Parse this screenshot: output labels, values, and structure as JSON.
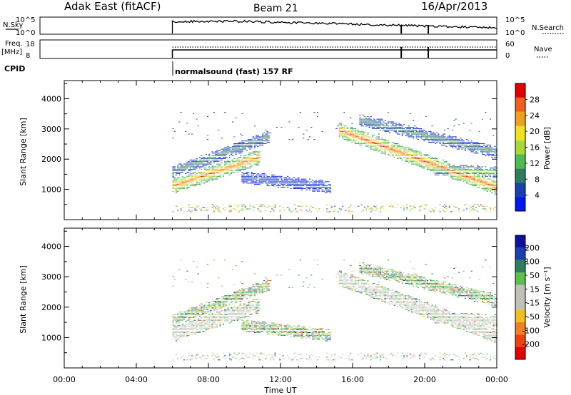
{
  "header": {
    "station": "Adak East (fitACF)",
    "beam": "Beam 21",
    "date": "16/Apr/2013"
  },
  "strips": {
    "nsky_label": "N.Sky",
    "nsky_ticks": [
      "10^5",
      "10^0"
    ],
    "nsearch_label": "N.Search",
    "nsearch_ticks": [
      "10^5",
      "10^0"
    ],
    "freq_label": "Freq.",
    "freq_unit": "[MHz]",
    "freq_ticks": [
      "18",
      "8"
    ],
    "nave_label": "Nave",
    "nave_ticks": [
      "60",
      "0"
    ],
    "cpid_label": "CPID",
    "cpid_text": "normalsound (fast) 157 RF"
  },
  "colors": {
    "power": [
      "#0018f0",
      "#1a3fb0",
      "#2e7d5b",
      "#4dbb4d",
      "#a8d83a",
      "#f0e020",
      "#f0a020",
      "#f06020",
      "#e00000"
    ],
    "velocity": [
      "#e00000",
      "#f04010",
      "#f08020",
      "#f0c020",
      "#c0c0b8",
      "#c0c0b8",
      "#5cc04a",
      "#2e7d5b",
      "#1a3fb0",
      "#1010a0"
    ],
    "gray": "#c8c8c0"
  },
  "chart_data": [
    {
      "type": "heatmap",
      "name": "power",
      "xlabel": "Time UT",
      "ylabel": "Slant Range [km]",
      "x_ticks": [
        "00:00",
        "04:00",
        "08:00",
        "12:00",
        "16:00",
        "20:00",
        "00:00"
      ],
      "y_ticks": [
        "1000",
        "2000",
        "3000",
        "4000"
      ],
      "xlim_hours": [
        0,
        24
      ],
      "ylim_km": [
        0,
        4600
      ],
      "colorbar_label": "Power [dB]",
      "colorbar_ticks": [
        "4",
        "8",
        "12",
        "16",
        "20",
        "24",
        "28"
      ],
      "colorbar_range": [
        0,
        32
      ],
      "echo_bands": [
        {
          "start_hour": 6.0,
          "end_hour": 10.8,
          "start_km": 1100,
          "end_km": 2050,
          "peak_db": 28
        },
        {
          "start_hour": 6.0,
          "end_hour": 11.4,
          "start_km": 1550,
          "end_km": 2750,
          "peak_db": 10
        },
        {
          "start_hour": 9.8,
          "end_hour": 14.8,
          "start_km": 1400,
          "end_km": 1050,
          "peak_db": 6
        },
        {
          "start_hour": 15.2,
          "end_hour": 24.0,
          "start_km": 2950,
          "end_km": 1050,
          "peak_db": 30
        },
        {
          "start_hour": 16.3,
          "end_hour": 24.0,
          "start_km": 3300,
          "end_km": 2200,
          "peak_db": 10
        },
        {
          "start_hour": 20.5,
          "end_hour": 24.0,
          "start_km": 1650,
          "end_km": 1550,
          "peak_db": 16
        }
      ]
    },
    {
      "type": "heatmap",
      "name": "velocity",
      "xlabel": "Time UT",
      "ylabel": "Slant Range [km]",
      "x_ticks": [
        "00:00",
        "04:00",
        "08:00",
        "12:00",
        "16:00",
        "20:00",
        "00:00"
      ],
      "y_ticks": [
        "1000",
        "2000",
        "3000",
        "4000"
      ],
      "xlim_hours": [
        0,
        24
      ],
      "ylim_km": [
        0,
        4600
      ],
      "colorbar_label": "Velocity [m s⁻¹]",
      "colorbar_ticks": [
        "200",
        "100",
        "50",
        "15",
        "-15",
        "-50",
        "-100",
        "-200"
      ],
      "echo_bands": [
        {
          "start_hour": 6.0,
          "end_hour": 10.8,
          "start_km": 1100,
          "end_km": 2050,
          "dominant": "ground scatter"
        },
        {
          "start_hour": 15.2,
          "end_hour": 24.0,
          "start_km": 2950,
          "end_km": 1050,
          "dominant": "ground scatter"
        },
        {
          "start_hour": 16.3,
          "end_hour": 24.0,
          "start_km": 3300,
          "end_km": 2200,
          "dominant": "15 to 50 m/s"
        }
      ]
    }
  ]
}
